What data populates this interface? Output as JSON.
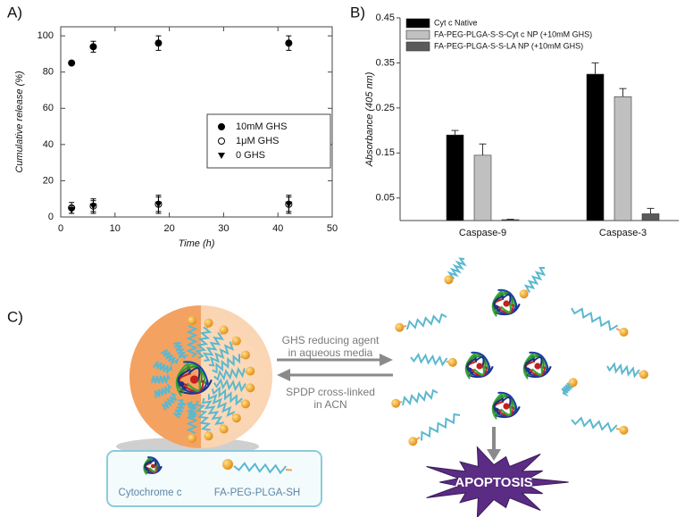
{
  "chart_data": [
    {
      "type": "scatter",
      "panel": "A)",
      "xlabel": "Time (h)",
      "ylabel": "Cumulative release (%)",
      "x": [
        2,
        6,
        18,
        42
      ],
      "xlim": [
        0,
        50
      ],
      "xticks": [
        0,
        10,
        20,
        30,
        40,
        50
      ],
      "ylim": [
        0,
        105
      ],
      "yticks": [
        0,
        20,
        40,
        60,
        80,
        100
      ],
      "legend": "center-right",
      "series": [
        {
          "name": "10mM GHS",
          "color": "#000000",
          "marker": "circle-filled",
          "values": [
            85,
            94,
            96,
            96
          ],
          "errors": [
            1,
            3,
            4,
            4
          ]
        },
        {
          "name": "1μM GHS",
          "color": "#000000",
          "marker": "circle-open",
          "values": [
            5,
            6,
            7,
            7
          ],
          "errors": [
            3,
            4,
            5,
            5
          ]
        },
        {
          "name": "0 GHS",
          "color": "#000000",
          "marker": "triangle-down",
          "values": [
            4,
            6,
            7,
            7
          ],
          "errors": [
            2,
            3,
            4,
            4
          ]
        }
      ]
    },
    {
      "type": "bar",
      "panel": "B)",
      "ylabel": "Absorbance (405 nm)",
      "categories": [
        "Caspase-9",
        "Caspase-3"
      ],
      "ylim": [
        0,
        0.45
      ],
      "yticks": [
        0.05,
        0.15,
        0.25,
        0.35,
        0.45
      ],
      "legend": "top-left",
      "series": [
        {
          "name": "Cyt c Native",
          "color": "#000000",
          "values": [
            0.19,
            0.325
          ],
          "errors": [
            0.01,
            0.025
          ]
        },
        {
          "name": "FA-PEG-PLGA-S-S-Cyt c NP (+10mM GHS)",
          "color": "#c0c0c0",
          "values": [
            0.145,
            0.275
          ],
          "errors": [
            0.025,
            0.018
          ]
        },
        {
          "name": "FA-PEG-PLGA-S-S-LA NP (+10mM GHS)",
          "color": "#5a5a5a",
          "values": [
            0.002,
            0.015
          ],
          "errors": [
            0.001,
            0.012
          ]
        }
      ]
    }
  ],
  "diagram": {
    "panel": "C)",
    "forward_label": [
      "GHS reducing agent",
      "in aqueous media"
    ],
    "reverse_label": [
      "SPDP cross-linked",
      "in ACN"
    ],
    "legend": [
      "Cytochrome c",
      "FA-PEG-PLGA-SH"
    ],
    "outcome": "APOPTOSIS"
  }
}
